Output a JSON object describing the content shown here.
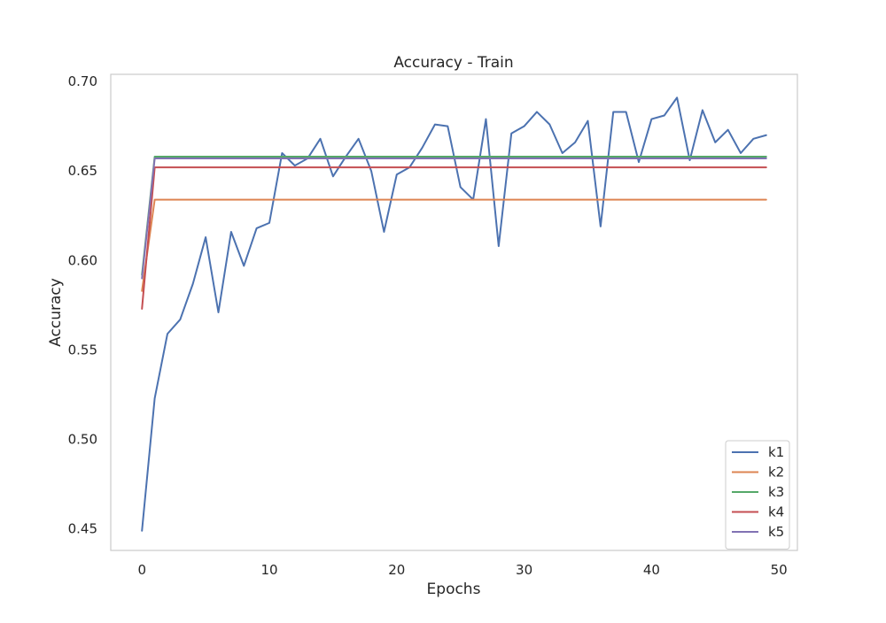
{
  "chart_data": {
    "type": "line",
    "title": "Accuracy - Train",
    "xlabel": "Epochs",
    "ylabel": "Accuracy",
    "xlim": [
      -2.45,
      51.45
    ],
    "ylim": [
      0.438,
      0.704
    ],
    "xticks": [
      0,
      10,
      20,
      30,
      40,
      50
    ],
    "yticks": [
      0.45,
      0.5,
      0.55,
      0.6,
      0.65,
      0.7
    ],
    "ytick_labels": [
      "0.45",
      "0.50",
      "0.55",
      "0.60",
      "0.65",
      "0.70"
    ],
    "grid": false,
    "legend_position": "bottom-right",
    "series": [
      {
        "name": "k1",
        "color": "#4c72b0",
        "x": [
          0,
          1,
          2,
          3,
          4,
          5,
          6,
          7,
          8,
          9,
          10,
          11,
          12,
          13,
          14,
          15,
          16,
          17,
          18,
          19,
          20,
          21,
          22,
          23,
          24,
          25,
          26,
          27,
          28,
          29,
          30,
          31,
          32,
          33,
          34,
          35,
          36,
          37,
          38,
          39,
          40,
          41,
          42,
          43,
          44,
          45,
          46,
          47,
          48,
          49
        ],
        "values": [
          0.449,
          0.523,
          0.559,
          0.567,
          0.587,
          0.613,
          0.571,
          0.616,
          0.597,
          0.618,
          0.621,
          0.66,
          0.653,
          0.657,
          0.668,
          0.647,
          0.658,
          0.668,
          0.65,
          0.616,
          0.648,
          0.652,
          0.663,
          0.676,
          0.675,
          0.641,
          0.634,
          0.679,
          0.608,
          0.671,
          0.675,
          0.683,
          0.676,
          0.66,
          0.666,
          0.678,
          0.619,
          0.683,
          0.683,
          0.655,
          0.679,
          0.681,
          0.691,
          0.656,
          0.684,
          0.666,
          0.673,
          0.66,
          0.668,
          0.67
        ]
      },
      {
        "name": "k2",
        "color": "#dd8452",
        "x": [
          0,
          1,
          2,
          3,
          4,
          5,
          6,
          7,
          8,
          9,
          10,
          11,
          12,
          13,
          14,
          15,
          16,
          17,
          18,
          19,
          20,
          21,
          22,
          23,
          24,
          25,
          26,
          27,
          28,
          29,
          30,
          31,
          32,
          33,
          34,
          35,
          36,
          37,
          38,
          39,
          40,
          41,
          42,
          43,
          44,
          45,
          46,
          47,
          48,
          49
        ],
        "values": [
          0.583,
          0.634,
          0.634,
          0.634,
          0.634,
          0.634,
          0.634,
          0.634,
          0.634,
          0.634,
          0.634,
          0.634,
          0.634,
          0.634,
          0.634,
          0.634,
          0.634,
          0.634,
          0.634,
          0.634,
          0.634,
          0.634,
          0.634,
          0.634,
          0.634,
          0.634,
          0.634,
          0.634,
          0.634,
          0.634,
          0.634,
          0.634,
          0.634,
          0.634,
          0.634,
          0.634,
          0.634,
          0.634,
          0.634,
          0.634,
          0.634,
          0.634,
          0.634,
          0.634,
          0.634,
          0.634,
          0.634,
          0.634,
          0.634,
          0.634
        ]
      },
      {
        "name": "k3",
        "color": "#55a868",
        "x": [
          0,
          1,
          2,
          3,
          4,
          5,
          6,
          7,
          8,
          9,
          10,
          11,
          12,
          13,
          14,
          15,
          16,
          17,
          18,
          19,
          20,
          21,
          22,
          23,
          24,
          25,
          26,
          27,
          28,
          29,
          30,
          31,
          32,
          33,
          34,
          35,
          36,
          37,
          38,
          39,
          40,
          41,
          42,
          43,
          44,
          45,
          46,
          47,
          48,
          49
        ],
        "values": [
          0.592,
          0.658,
          0.658,
          0.658,
          0.658,
          0.658,
          0.658,
          0.658,
          0.658,
          0.658,
          0.658,
          0.658,
          0.658,
          0.658,
          0.658,
          0.658,
          0.658,
          0.658,
          0.658,
          0.658,
          0.658,
          0.658,
          0.658,
          0.658,
          0.658,
          0.658,
          0.658,
          0.658,
          0.658,
          0.658,
          0.658,
          0.658,
          0.658,
          0.658,
          0.658,
          0.658,
          0.658,
          0.658,
          0.658,
          0.658,
          0.658,
          0.658,
          0.658,
          0.658,
          0.658,
          0.658,
          0.658,
          0.658,
          0.658,
          0.658
        ]
      },
      {
        "name": "k4",
        "color": "#c44e52",
        "x": [
          0,
          1,
          2,
          3,
          4,
          5,
          6,
          7,
          8,
          9,
          10,
          11,
          12,
          13,
          14,
          15,
          16,
          17,
          18,
          19,
          20,
          21,
          22,
          23,
          24,
          25,
          26,
          27,
          28,
          29,
          30,
          31,
          32,
          33,
          34,
          35,
          36,
          37,
          38,
          39,
          40,
          41,
          42,
          43,
          44,
          45,
          46,
          47,
          48,
          49
        ],
        "values": [
          0.573,
          0.652,
          0.652,
          0.652,
          0.652,
          0.652,
          0.652,
          0.652,
          0.652,
          0.652,
          0.652,
          0.652,
          0.652,
          0.652,
          0.652,
          0.652,
          0.652,
          0.652,
          0.652,
          0.652,
          0.652,
          0.652,
          0.652,
          0.652,
          0.652,
          0.652,
          0.652,
          0.652,
          0.652,
          0.652,
          0.652,
          0.652,
          0.652,
          0.652,
          0.652,
          0.652,
          0.652,
          0.652,
          0.652,
          0.652,
          0.652,
          0.652,
          0.652,
          0.652,
          0.652,
          0.652,
          0.652,
          0.652,
          0.652,
          0.652
        ]
      },
      {
        "name": "k5",
        "color": "#8172b3",
        "x": [
          0,
          1,
          2,
          3,
          4,
          5,
          6,
          7,
          8,
          9,
          10,
          11,
          12,
          13,
          14,
          15,
          16,
          17,
          18,
          19,
          20,
          21,
          22,
          23,
          24,
          25,
          26,
          27,
          28,
          29,
          30,
          31,
          32,
          33,
          34,
          35,
          36,
          37,
          38,
          39,
          40,
          41,
          42,
          43,
          44,
          45,
          46,
          47,
          48,
          49
        ],
        "values": [
          0.59,
          0.657,
          0.657,
          0.657,
          0.657,
          0.657,
          0.657,
          0.657,
          0.657,
          0.657,
          0.657,
          0.657,
          0.657,
          0.657,
          0.657,
          0.657,
          0.657,
          0.657,
          0.657,
          0.657,
          0.657,
          0.657,
          0.657,
          0.657,
          0.657,
          0.657,
          0.657,
          0.657,
          0.657,
          0.657,
          0.657,
          0.657,
          0.657,
          0.657,
          0.657,
          0.657,
          0.657,
          0.657,
          0.657,
          0.657,
          0.657,
          0.657,
          0.657,
          0.657,
          0.657,
          0.657,
          0.657,
          0.657,
          0.657,
          0.657
        ]
      }
    ]
  }
}
